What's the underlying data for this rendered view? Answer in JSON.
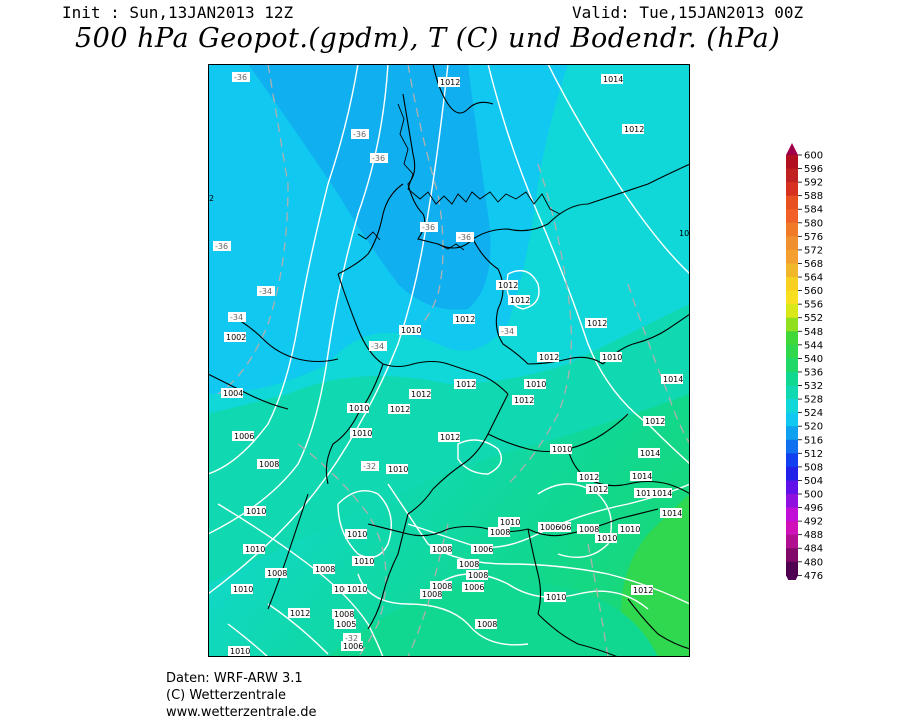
{
  "header": {
    "init": "Init : Sun,13JAN2013 12Z",
    "valid": "Valid: Tue,15JAN2013 00Z",
    "title": "500 hPa Geopot.(gpdm), T (C) und Bodendr. (hPa)"
  },
  "credits": {
    "line1": "Daten: WRF-ARW 3.1",
    "line2": "(C) Wetterzentrale",
    "line3": "www.wetterzentrale.de"
  },
  "legend": {
    "levels": [
      "600",
      "596",
      "592",
      "588",
      "584",
      "580",
      "576",
      "572",
      "568",
      "564",
      "560",
      "556",
      "552",
      "548",
      "544",
      "540",
      "536",
      "532",
      "528",
      "524",
      "520",
      "516",
      "512",
      "508",
      "504",
      "500",
      "496",
      "492",
      "488",
      "484",
      "480",
      "476"
    ],
    "colors": [
      "#a0004a",
      "#b01020",
      "#c02020",
      "#d83020",
      "#e85020",
      "#f06028",
      "#f07a28",
      "#f09030",
      "#f4a030",
      "#f0b828",
      "#f8d020",
      "#f8e020",
      "#d8e818",
      "#90e020",
      "#40d838",
      "#30d850",
      "#20d868",
      "#10d890",
      "#10d8b0",
      "#10d8d8",
      "#10c8f0",
      "#10a0f0",
      "#1070f0",
      "#1040f0",
      "#2020e8",
      "#6010e8",
      "#9010e0",
      "#c010d8",
      "#d010b8",
      "#b01090",
      "#800868",
      "#500050"
    ]
  },
  "map": {
    "pressure_labels": [
      "1012",
      "1014",
      "1012",
      "1002",
      "1004",
      "1006",
      "1008",
      "1010",
      "1010",
      "1010",
      "1012",
      "1012",
      "1012",
      "1010",
      "1010",
      "1012",
      "1012",
      "1010",
      "1012",
      "1014",
      "1012",
      "1014",
      "1014",
      "1012",
      "1014",
      "1014",
      "1012",
      "1012",
      "1010",
      "1010",
      "1010",
      "1008",
      "1006",
      "1006",
      "1008",
      "1010",
      "1006",
      "1008",
      "1008",
      "1008",
      "1006",
      "1008",
      "1008",
      "1010",
      "1012",
      "1012",
      "1010",
      "1008",
      "1010",
      "1008",
      "1010",
      "1008",
      "1005",
      "1006",
      "1012",
      "1010",
      "1012",
      "1012",
      "1012",
      "1008",
      "1010",
      "1010",
      "1008",
      "1010"
    ],
    "temp_labels": [
      "-36",
      "-36",
      "-36",
      "-36",
      "-36",
      "-36",
      "-34",
      "-34",
      "-34",
      "-34",
      "-32",
      "-32"
    ],
    "edge_labels": [
      "2",
      "10"
    ]
  }
}
